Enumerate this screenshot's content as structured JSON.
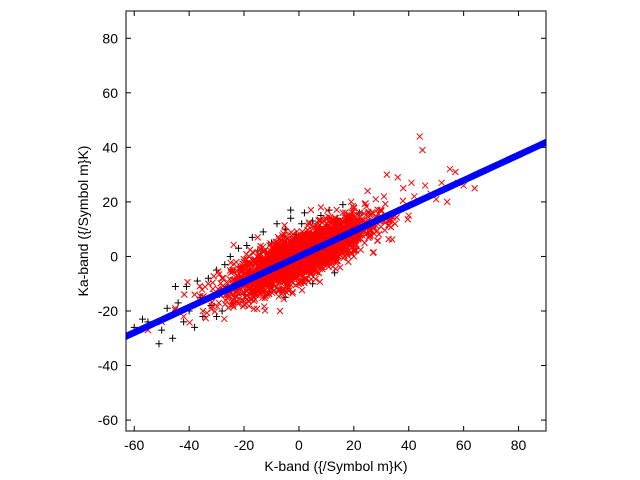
{
  "chart_data": {
    "type": "scatter",
    "title": "",
    "xlabel": "K-band ({/Symbol m}K)",
    "ylabel": "Ka-band ({/Symbol m}K)",
    "xlim": [
      -63,
      90
    ],
    "ylim": [
      -64,
      90
    ],
    "xticks": [
      -60,
      -40,
      -20,
      0,
      20,
      40,
      60,
      80
    ],
    "yticks": [
      -60,
      -40,
      -20,
      0,
      20,
      40,
      60,
      80
    ],
    "grid": false,
    "legend": "none",
    "series": [
      {
        "marker": "plus",
        "color": "#000000",
        "points": [
          [
            -60,
            -26
          ],
          [
            -57,
            -23
          ],
          [
            -55,
            -24
          ],
          [
            -51,
            -32
          ],
          [
            -50,
            -27
          ],
          [
            -48,
            -19
          ],
          [
            -46,
            -30
          ],
          [
            -44,
            -17
          ],
          [
            -42,
            -24
          ],
          [
            -41,
            -11
          ],
          [
            -40,
            -20
          ],
          [
            -38,
            -26
          ],
          [
            -37,
            -9
          ],
          [
            -36,
            -15
          ],
          [
            -35,
            -22
          ],
          [
            -33,
            -8
          ],
          [
            -32,
            -18
          ],
          [
            -30,
            -5
          ],
          [
            -29,
            -14
          ],
          [
            -28,
            -20
          ],
          [
            -27,
            -3
          ],
          [
            -26,
            -11
          ],
          [
            -25,
            0
          ],
          [
            -24,
            -17
          ],
          [
            -22,
            3
          ],
          [
            -21,
            -9
          ],
          [
            -20,
            -14
          ],
          [
            -19,
            4
          ],
          [
            -18,
            -5
          ],
          [
            -17,
            7
          ],
          [
            -16,
            -11
          ],
          [
            -15,
            2
          ],
          [
            -14,
            -7
          ],
          [
            -13,
            9
          ],
          [
            -12,
            -3
          ],
          [
            -11,
            -13
          ],
          [
            -10,
            5
          ],
          [
            -9,
            -6
          ],
          [
            -8,
            12
          ],
          [
            -7,
            -1
          ],
          [
            -6,
            -9
          ],
          [
            -5,
            10
          ],
          [
            -4,
            2
          ],
          [
            -3,
            14
          ],
          [
            -2,
            -5
          ],
          [
            -1,
            8
          ],
          [
            0,
            -2
          ],
          [
            1,
            12
          ],
          [
            2,
            16
          ],
          [
            3,
            -4
          ],
          [
            4,
            6
          ],
          [
            5,
            13
          ],
          [
            6,
            -1
          ],
          [
            7,
            9
          ],
          [
            8,
            15
          ],
          [
            9,
            2
          ],
          [
            10,
            11
          ],
          [
            11,
            17
          ],
          [
            12,
            4
          ],
          [
            13,
            -6
          ],
          [
            14,
            14
          ],
          [
            15,
            8
          ],
          [
            16,
            19
          ],
          [
            18,
            12
          ],
          [
            20,
            6
          ],
          [
            22,
            16
          ],
          [
            25,
            10
          ],
          [
            -3,
            17
          ],
          [
            -30,
            -22
          ],
          [
            -45,
            -11
          ],
          [
            -5,
            -15
          ],
          [
            5,
            -10
          ]
        ]
      },
      {
        "marker": "x",
        "color": "#ff0000",
        "cloud": {
          "count": 2600,
          "x_center": 0,
          "x_sd": 12,
          "slope": 0.45,
          "y_noise_sd": 4.2
        },
        "points": [
          [
            44,
            44
          ],
          [
            45,
            39
          ],
          [
            32,
            30
          ],
          [
            31,
            22
          ],
          [
            42,
            22
          ],
          [
            41,
            27
          ],
          [
            48,
            23
          ],
          [
            50,
            21
          ],
          [
            55,
            32
          ],
          [
            57,
            31
          ],
          [
            54,
            20
          ],
          [
            58,
            27
          ],
          [
            64,
            25
          ],
          [
            60,
            26
          ],
          [
            52,
            27
          ],
          [
            38,
            25
          ],
          [
            36,
            29
          ],
          [
            40,
            15
          ],
          [
            30,
            17
          ],
          [
            28,
            21
          ],
          [
            35,
            12
          ],
          [
            -55,
            -27
          ],
          [
            -50,
            -24
          ],
          [
            -45,
            -19
          ],
          [
            -42,
            -22
          ],
          [
            -38,
            -14
          ],
          [
            -35,
            -20
          ],
          [
            -33,
            -10
          ],
          [
            -10,
            -12
          ],
          [
            10,
            12
          ],
          [
            18,
            -2
          ],
          [
            20,
            18
          ],
          [
            25,
            24
          ],
          [
            26,
            8
          ],
          [
            33,
            13
          ],
          [
            46,
            26
          ],
          [
            -20,
            -2
          ],
          [
            -25,
            -18
          ],
          [
            -28,
            -8
          ],
          [
            15,
            -4
          ],
          [
            -15,
            7
          ],
          [
            8,
            18
          ]
        ]
      },
      {
        "marker": "dot",
        "color": "#0000ff",
        "line": {
          "x_from": -63,
          "x_to": 90,
          "slope": 0.465,
          "intercept": 0
        }
      }
    ]
  }
}
